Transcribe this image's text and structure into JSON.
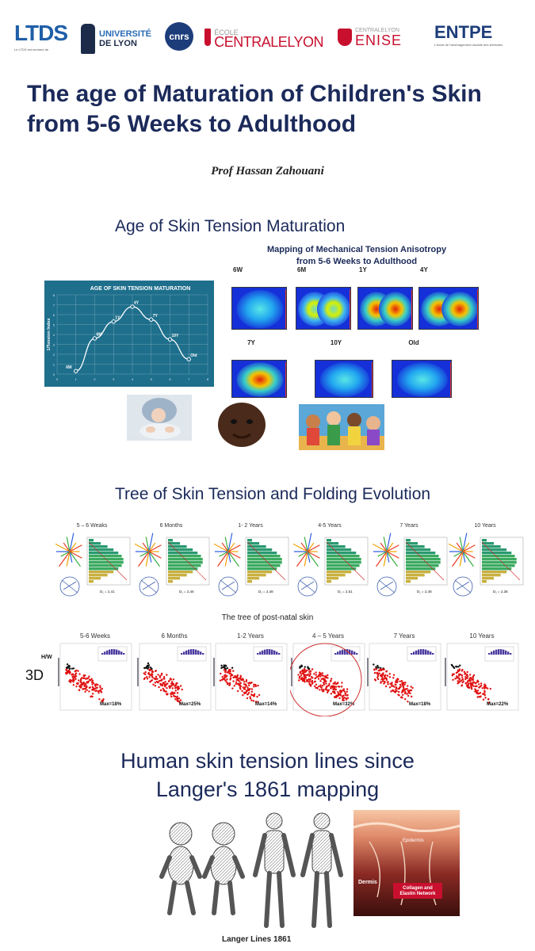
{
  "logos": {
    "ltds": {
      "name": "LTDS",
      "tagline": "Le LTDS est membre de"
    },
    "udl": {
      "line1": "UNIVERSITÉ",
      "line2": "DE LYON"
    },
    "cnrs": {
      "name": "cnrs"
    },
    "ecl": {
      "line1": "ÉCOLE",
      "line2": "CENTRALELYON"
    },
    "enise": {
      "line1": "CENTRALELYON",
      "line2": "ENISE"
    },
    "entpe": {
      "name": "ENTPE",
      "tagline": "L'école de l'aménagement durable des territoires"
    }
  },
  "title": "The age of Maturation of Children's Skin from 5-6 Weeks to Adulthood",
  "author": "Prof Hassan Zahouani",
  "section1": {
    "heading": "Age of Skin Tension Maturation",
    "map_title_line1": "Mapping of Mechanical Tension Anisotropy",
    "map_title_line2": "from 5-6 Weeks to Adulthood",
    "heatmaps": [
      {
        "label": "6W",
        "hot": 0.15,
        "two_lobes": false
      },
      {
        "label": "6M",
        "hot": 0.45,
        "two_lobes": true
      },
      {
        "label": "1Y",
        "hot": 0.9,
        "two_lobes": true
      },
      {
        "label": "4Y",
        "hot": 1.0,
        "two_lobes": true
      },
      {
        "label": "7Y",
        "hot": 0.85,
        "two_lobes": false
      },
      {
        "label": "10Y",
        "hot": 0.35,
        "two_lobes": false
      },
      {
        "label": "Old",
        "hot": 0.2,
        "two_lobes": false
      }
    ]
  },
  "chart_data": {
    "type": "line",
    "title": "AGE OF SKIN TENSION MATURATION",
    "xlabel": "",
    "ylabel": "1/Tension Index",
    "x": [
      1,
      2,
      3,
      4,
      5,
      6,
      7
    ],
    "values": [
      0.3,
      3.6,
      5.3,
      6.8,
      5.5,
      3.5,
      1.5
    ],
    "point_labels": [
      "6W",
      "6M",
      "1Y",
      "4Y",
      "7Y",
      "10Y",
      "Old"
    ],
    "xticks": [
      "0",
      "1",
      "2",
      "3",
      "4",
      "5",
      "6",
      "7",
      "8"
    ],
    "yticks": [
      "0",
      "1",
      "2",
      "3",
      "4",
      "5",
      "6",
      "7",
      "8"
    ],
    "xlim": [
      0,
      8
    ],
    "ylim": [
      0,
      8
    ],
    "grid": true,
    "colors": {
      "background": "#1e6f8c",
      "line": "#ffffff"
    }
  },
  "section2": {
    "heading": "Tree of Skin Tension and Folding Evolution",
    "tree_columns": [
      {
        "label": "5 – 6 Weaks",
        "d": "D₁ = 2,41"
      },
      {
        "label": "6 Months",
        "d": "D₁ = 2,46"
      },
      {
        "label": "1- 2 Years",
        "d": "D₁ = 2,48"
      },
      {
        "label": "4-5 Years",
        "d": "D₁ = 2,51"
      },
      {
        "label": "7 Years",
        "d": "D₁ = 2,48"
      },
      {
        "label": "10 Years",
        "d": "D₁ = 2,38"
      }
    ],
    "post_natal_title": "The tree of post-natal skin",
    "scatter_columns": [
      {
        "label": "5-6 Weeks",
        "max": "Max=18%"
      },
      {
        "label": "6 Months",
        "max": "Max=25%"
      },
      {
        "label": "1-2 Years",
        "max": "Max=14%"
      },
      {
        "label": "4 – 5 Years",
        "max": "Max=32%"
      },
      {
        "label": "7 Years",
        "max": "Max=18%"
      },
      {
        "label": "10 Years",
        "max": "Max=22%"
      }
    ],
    "hw_label": "H/W",
    "side_label": "3D"
  },
  "section3": {
    "heading_line1": "Human skin tension lines since",
    "heading_line2": "Langer's 1861 mapping",
    "skin_labels": {
      "epidermis": "Epidermis",
      "dermis": "Dermis",
      "network": "Collagen and Elastin Network"
    },
    "caption": "Langer Lines 1861"
  }
}
